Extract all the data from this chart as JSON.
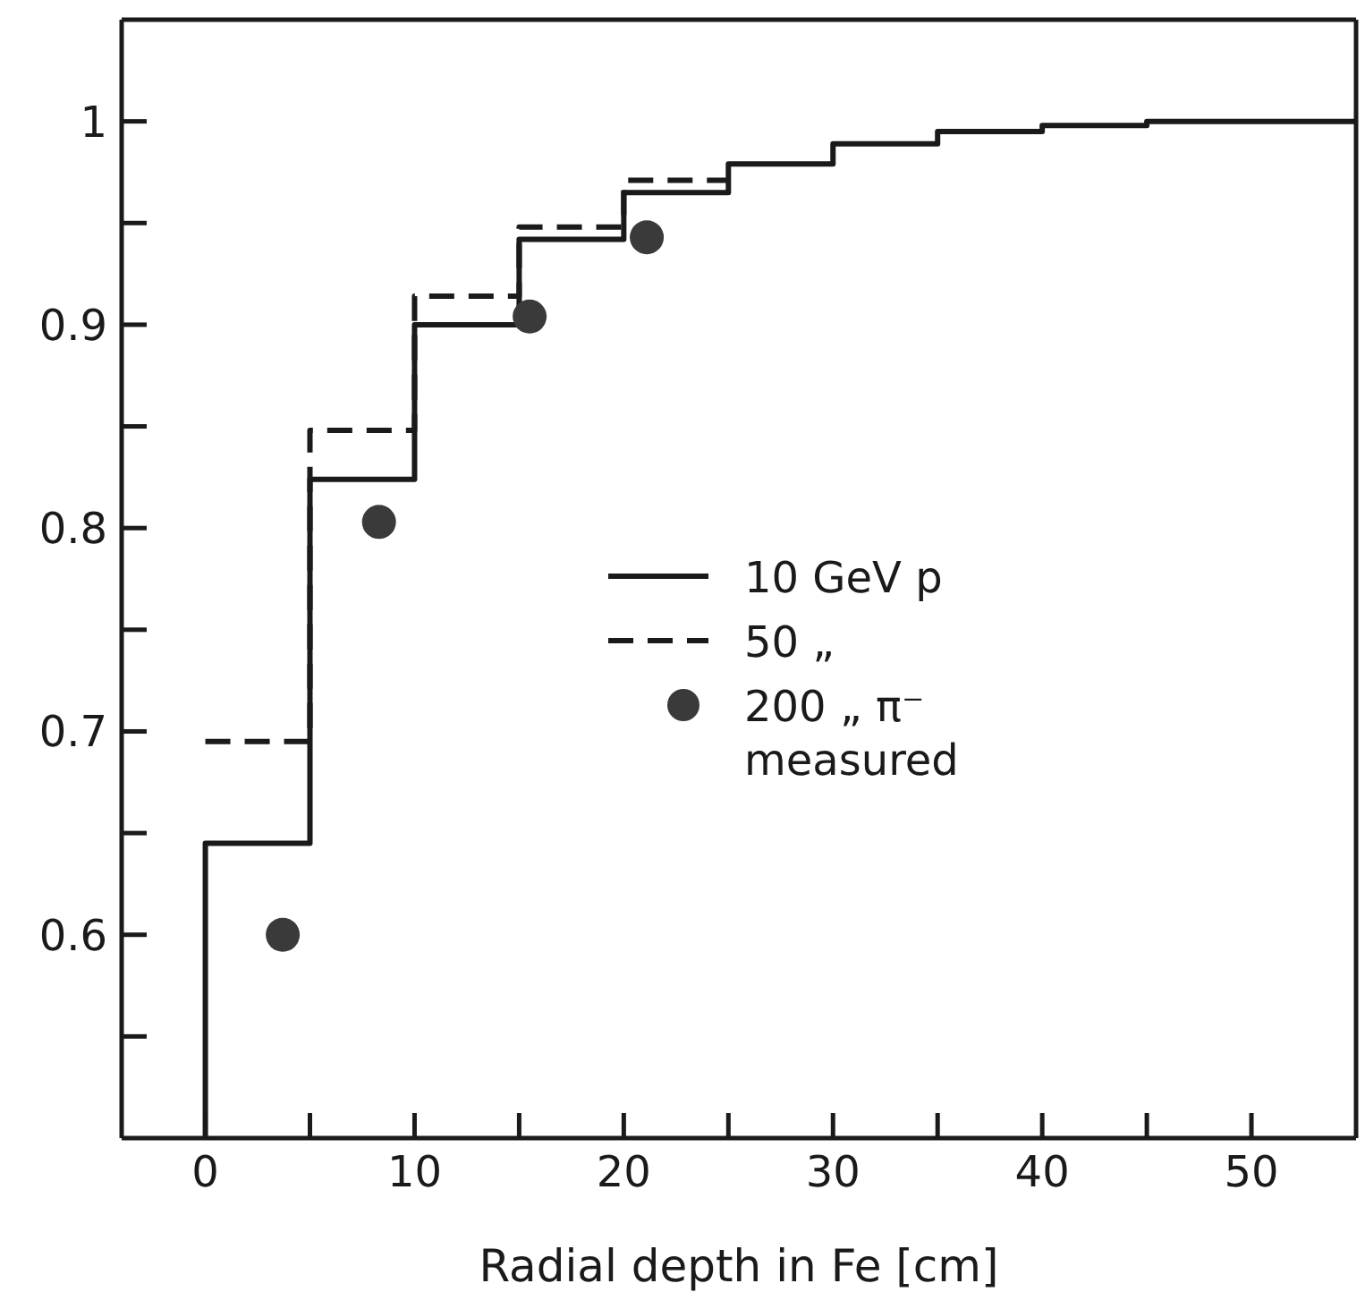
{
  "chart_data": {
    "type": "step",
    "xlabel": "Radial depth in Fe   [cm]",
    "xlim": [
      -4,
      55
    ],
    "xticks": [
      0,
      {
        "value": 5,
        "label": null
      },
      10,
      {
        "value": 15,
        "label": null
      },
      20,
      {
        "value": 25,
        "label": null
      },
      30,
      {
        "value": 35,
        "label": null
      },
      40,
      {
        "value": 45,
        "label": null
      },
      50
    ],
    "ylim": [
      0.5,
      1.05
    ],
    "yticks": [
      {
        "value": 0.55,
        "label": null
      },
      0.6,
      {
        "value": 0.65,
        "label": null
      },
      0.7,
      {
        "value": 0.75,
        "label": null
      },
      0.8,
      {
        "value": 0.85,
        "label": null
      },
      0.9,
      {
        "value": 0.95,
        "label": null
      },
      1
    ],
    "legend": "right",
    "series": [
      {
        "name": "10 GeV p",
        "color": "#1a1a1a",
        "line_style": "solid",
        "x": [
          0,
          0,
          5,
          10,
          15,
          20,
          25,
          30,
          35,
          40,
          45,
          55
        ],
        "values": [
          0.5,
          0.645,
          0.824,
          0.9,
          0.942,
          0.965,
          0.979,
          0.989,
          0.995,
          0.998,
          1.0,
          1.0
        ]
      },
      {
        "name": "50 „",
        "color": "#1a1a1a",
        "line_style": "dashed",
        "x": [
          0,
          5,
          10,
          15,
          20,
          25
        ],
        "values": [
          0.695,
          0.848,
          0.914,
          0.948,
          0.971,
          0.971
        ]
      },
      {
        "name": "200 „ π⁻ measured",
        "type": "scatter",
        "marker": "circle",
        "color": "#3a3a3a",
        "x": [
          3.7,
          8.3,
          15.5,
          21.1
        ],
        "values": [
          0.6,
          0.803,
          0.904,
          0.943
        ]
      }
    ]
  }
}
